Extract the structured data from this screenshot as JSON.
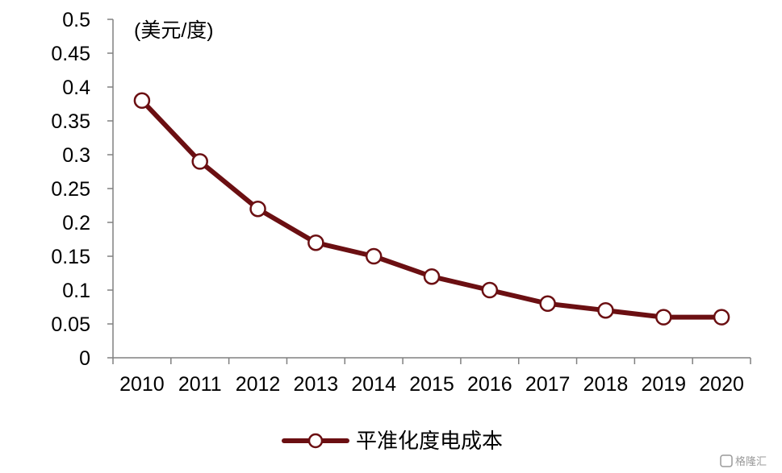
{
  "chart_data": {
    "type": "line",
    "unit_label": "(美元/度)",
    "x": [
      "2010",
      "2011",
      "2012",
      "2013",
      "2014",
      "2015",
      "2016",
      "2017",
      "2018",
      "2019",
      "2020"
    ],
    "series": [
      {
        "name": "平准化度电成本",
        "values": [
          0.38,
          0.29,
          0.22,
          0.17,
          0.15,
          0.12,
          0.1,
          0.08,
          0.07,
          0.06,
          0.06
        ],
        "color": "#6b0f12",
        "marker": "hollow-circle"
      }
    ],
    "ylim": [
      0,
      0.5
    ],
    "yticks": [
      "0",
      "0.05",
      "0.1",
      "0.15",
      "0.2",
      "0.25",
      "0.3",
      "0.35",
      "0.4",
      "0.45",
      "0.5"
    ],
    "grid": false,
    "legend_position": "bottom"
  },
  "watermark": {
    "text": "格隆汇"
  }
}
